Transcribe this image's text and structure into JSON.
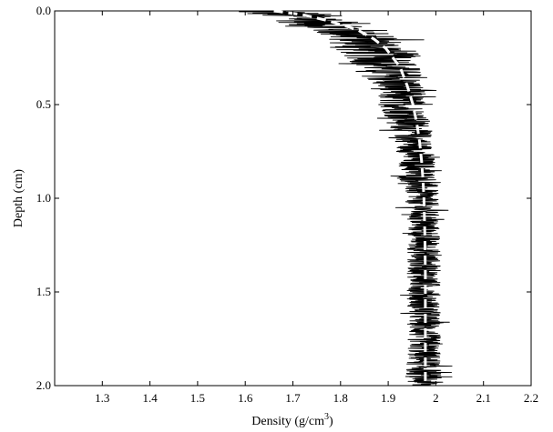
{
  "chart_data": {
    "type": "line",
    "orientation": "depth-down",
    "xlabel": "Density (g/cm",
    "xlabel_sup": "3",
    "xlabel_suffix": ")",
    "ylabel": "Depth (cm)",
    "xlim": [
      1.2,
      2.2
    ],
    "ylim": [
      0.0,
      2.0
    ],
    "y_inverted": true,
    "grid": false,
    "legend": "none",
    "x_ticks": [
      1.3,
      1.4,
      1.5,
      1.6,
      1.7,
      1.8,
      1.9,
      2.0,
      2.1,
      2.2
    ],
    "x_tick_labels": [
      "1.3",
      "1.4",
      "1.5",
      "1.6",
      "1.7",
      "1.8",
      "1.9",
      "2",
      "2.1",
      "2.2"
    ],
    "y_ticks": [
      0.0,
      0.5,
      1.0,
      1.5,
      2.0
    ],
    "y_tick_labels": [
      "0.0",
      "0.5",
      "1.0",
      "1.5",
      "2.0"
    ],
    "series": [
      {
        "style": "noisy-measured",
        "color": "#000000",
        "envelope": {
          "depth": [
            0.0,
            0.02,
            0.05,
            0.08,
            0.1,
            0.15,
            0.2,
            0.25,
            0.3,
            0.4,
            0.5,
            0.6,
            0.7,
            0.8,
            0.9,
            1.0,
            1.2,
            1.4,
            1.6,
            1.8,
            2.0
          ],
          "center": [
            1.64,
            1.7,
            1.75,
            1.78,
            1.81,
            1.85,
            1.87,
            1.89,
            1.9,
            1.92,
            1.93,
            1.945,
            1.955,
            1.96,
            1.965,
            1.97,
            1.975,
            1.975,
            1.975,
            1.975,
            1.975
          ],
          "half_width": [
            0.1,
            0.1,
            0.09,
            0.1,
            0.09,
            0.08,
            0.09,
            0.08,
            0.07,
            0.06,
            0.05,
            0.045,
            0.04,
            0.04,
            0.04,
            0.035,
            0.035,
            0.035,
            0.035,
            0.035,
            0.04
          ]
        }
      },
      {
        "style": "dashed-fit",
        "color": "#ffffff",
        "depth": [
          0.0,
          0.02,
          0.05,
          0.08,
          0.1,
          0.15,
          0.2,
          0.25,
          0.3,
          0.4,
          0.5,
          0.6,
          0.7,
          0.8,
          0.9,
          1.0,
          1.2,
          1.4,
          1.6,
          1.8,
          2.0
        ],
        "density": [
          1.66,
          1.72,
          1.77,
          1.81,
          1.835,
          1.87,
          1.895,
          1.91,
          1.925,
          1.94,
          1.952,
          1.96,
          1.966,
          1.97,
          1.973,
          1.975,
          1.977,
          1.978,
          1.978,
          1.978,
          1.978
        ]
      }
    ]
  }
}
